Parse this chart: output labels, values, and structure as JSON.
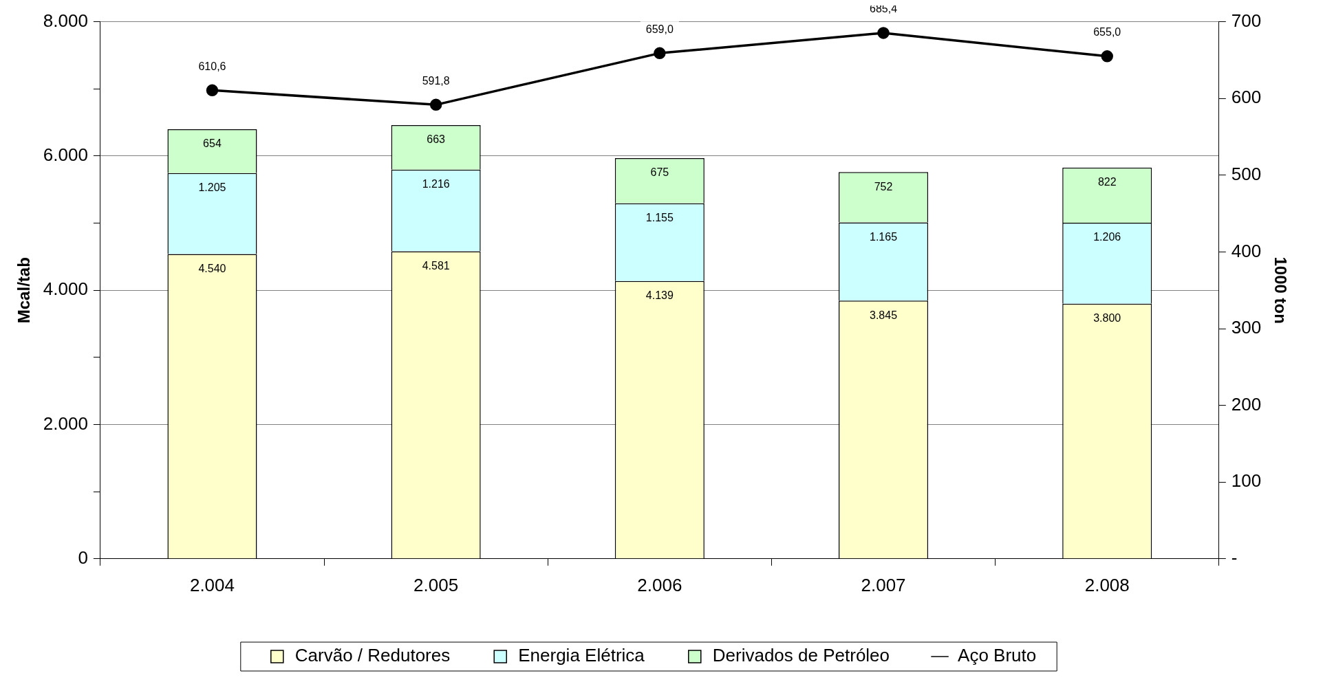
{
  "chart_data": {
    "type": "bar",
    "stacked": true,
    "ylabel": "Mcal/tab",
    "y2label": "1000 ton",
    "categories": [
      "2.004",
      "2.005",
      "2.006",
      "2.007",
      "2.008"
    ],
    "series": [
      {
        "name": "Carvão / Redutores",
        "color": "#ffffcc",
        "values": [
          4540,
          4581,
          4139,
          3845,
          3800
        ],
        "value_labels": [
          "4.540",
          "4.581",
          "4.139",
          "3.845",
          "3.800"
        ]
      },
      {
        "name": "Energia Elétrica",
        "color": "#ccffff",
        "values": [
          1205,
          1216,
          1155,
          1165,
          1206
        ],
        "value_labels": [
          "1.205",
          "1.216",
          "1.155",
          "1.165",
          "1.206"
        ]
      },
      {
        "name": "Derivados de Petróleo",
        "color": "#ccffcc",
        "values": [
          654,
          663,
          675,
          752,
          822
        ],
        "value_labels": [
          "654",
          "663",
          "675",
          "752",
          "822"
        ]
      },
      {
        "name": "Aço Bruto",
        "type": "line",
        "axis": "y2",
        "color": "#000000",
        "marker": "circle",
        "values": [
          610.6,
          591.8,
          659.0,
          685.4,
          655.0
        ],
        "value_labels": [
          "610,6",
          "591,8",
          "659,0",
          "685,4",
          "655,0"
        ]
      }
    ],
    "ylim": [
      0,
      8000
    ],
    "yticks": [
      0,
      {
        "value": 1000,
        "label": null
      },
      {
        "value": 2000,
        "label": "2.000"
      },
      {
        "value": 3000,
        "label": null
      },
      {
        "value": 4000,
        "label": "4.000"
      },
      {
        "value": 5000,
        "label": null
      },
      {
        "value": 6000,
        "label": "6.000"
      },
      {
        "value": 7000,
        "label": null
      },
      {
        "value": 8000,
        "label": "8.000"
      }
    ],
    "y2lim": [
      0,
      700
    ],
    "y2ticks": [
      {
        "value": 0,
        "label": "-"
      },
      100,
      200,
      300,
      400,
      500,
      600,
      700
    ],
    "grid": "y",
    "legend": "bottom"
  }
}
